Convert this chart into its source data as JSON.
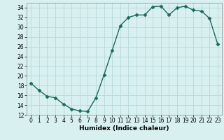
{
  "x": [
    0,
    1,
    2,
    3,
    4,
    5,
    6,
    7,
    8,
    9,
    10,
    11,
    12,
    13,
    14,
    15,
    16,
    17,
    18,
    19,
    20,
    21,
    22,
    23
  ],
  "y": [
    18.5,
    17.0,
    15.8,
    15.5,
    14.2,
    13.2,
    12.8,
    12.7,
    15.5,
    20.2,
    25.2,
    30.3,
    32.0,
    32.5,
    32.5,
    34.2,
    34.3,
    32.5,
    34.0,
    34.3,
    33.5,
    33.3,
    31.8,
    26.5
  ],
  "line_color": "#1a6b5a",
  "marker": "D",
  "marker_size": 2.5,
  "bg_color": "#d8f0f0",
  "grid_color": "#b8d8d8",
  "xlabel": "Humidex (Indice chaleur)",
  "xlim": [
    -0.5,
    23.5
  ],
  "ylim": [
    12,
    35
  ],
  "yticks": [
    12,
    14,
    16,
    18,
    20,
    22,
    24,
    26,
    28,
    30,
    32,
    34
  ],
  "xticks": [
    0,
    1,
    2,
    3,
    4,
    5,
    6,
    7,
    8,
    9,
    10,
    11,
    12,
    13,
    14,
    15,
    16,
    17,
    18,
    19,
    20,
    21,
    22,
    23
  ],
  "tick_fontsize": 5.5,
  "xlabel_fontsize": 6.5,
  "linewidth": 1.0
}
